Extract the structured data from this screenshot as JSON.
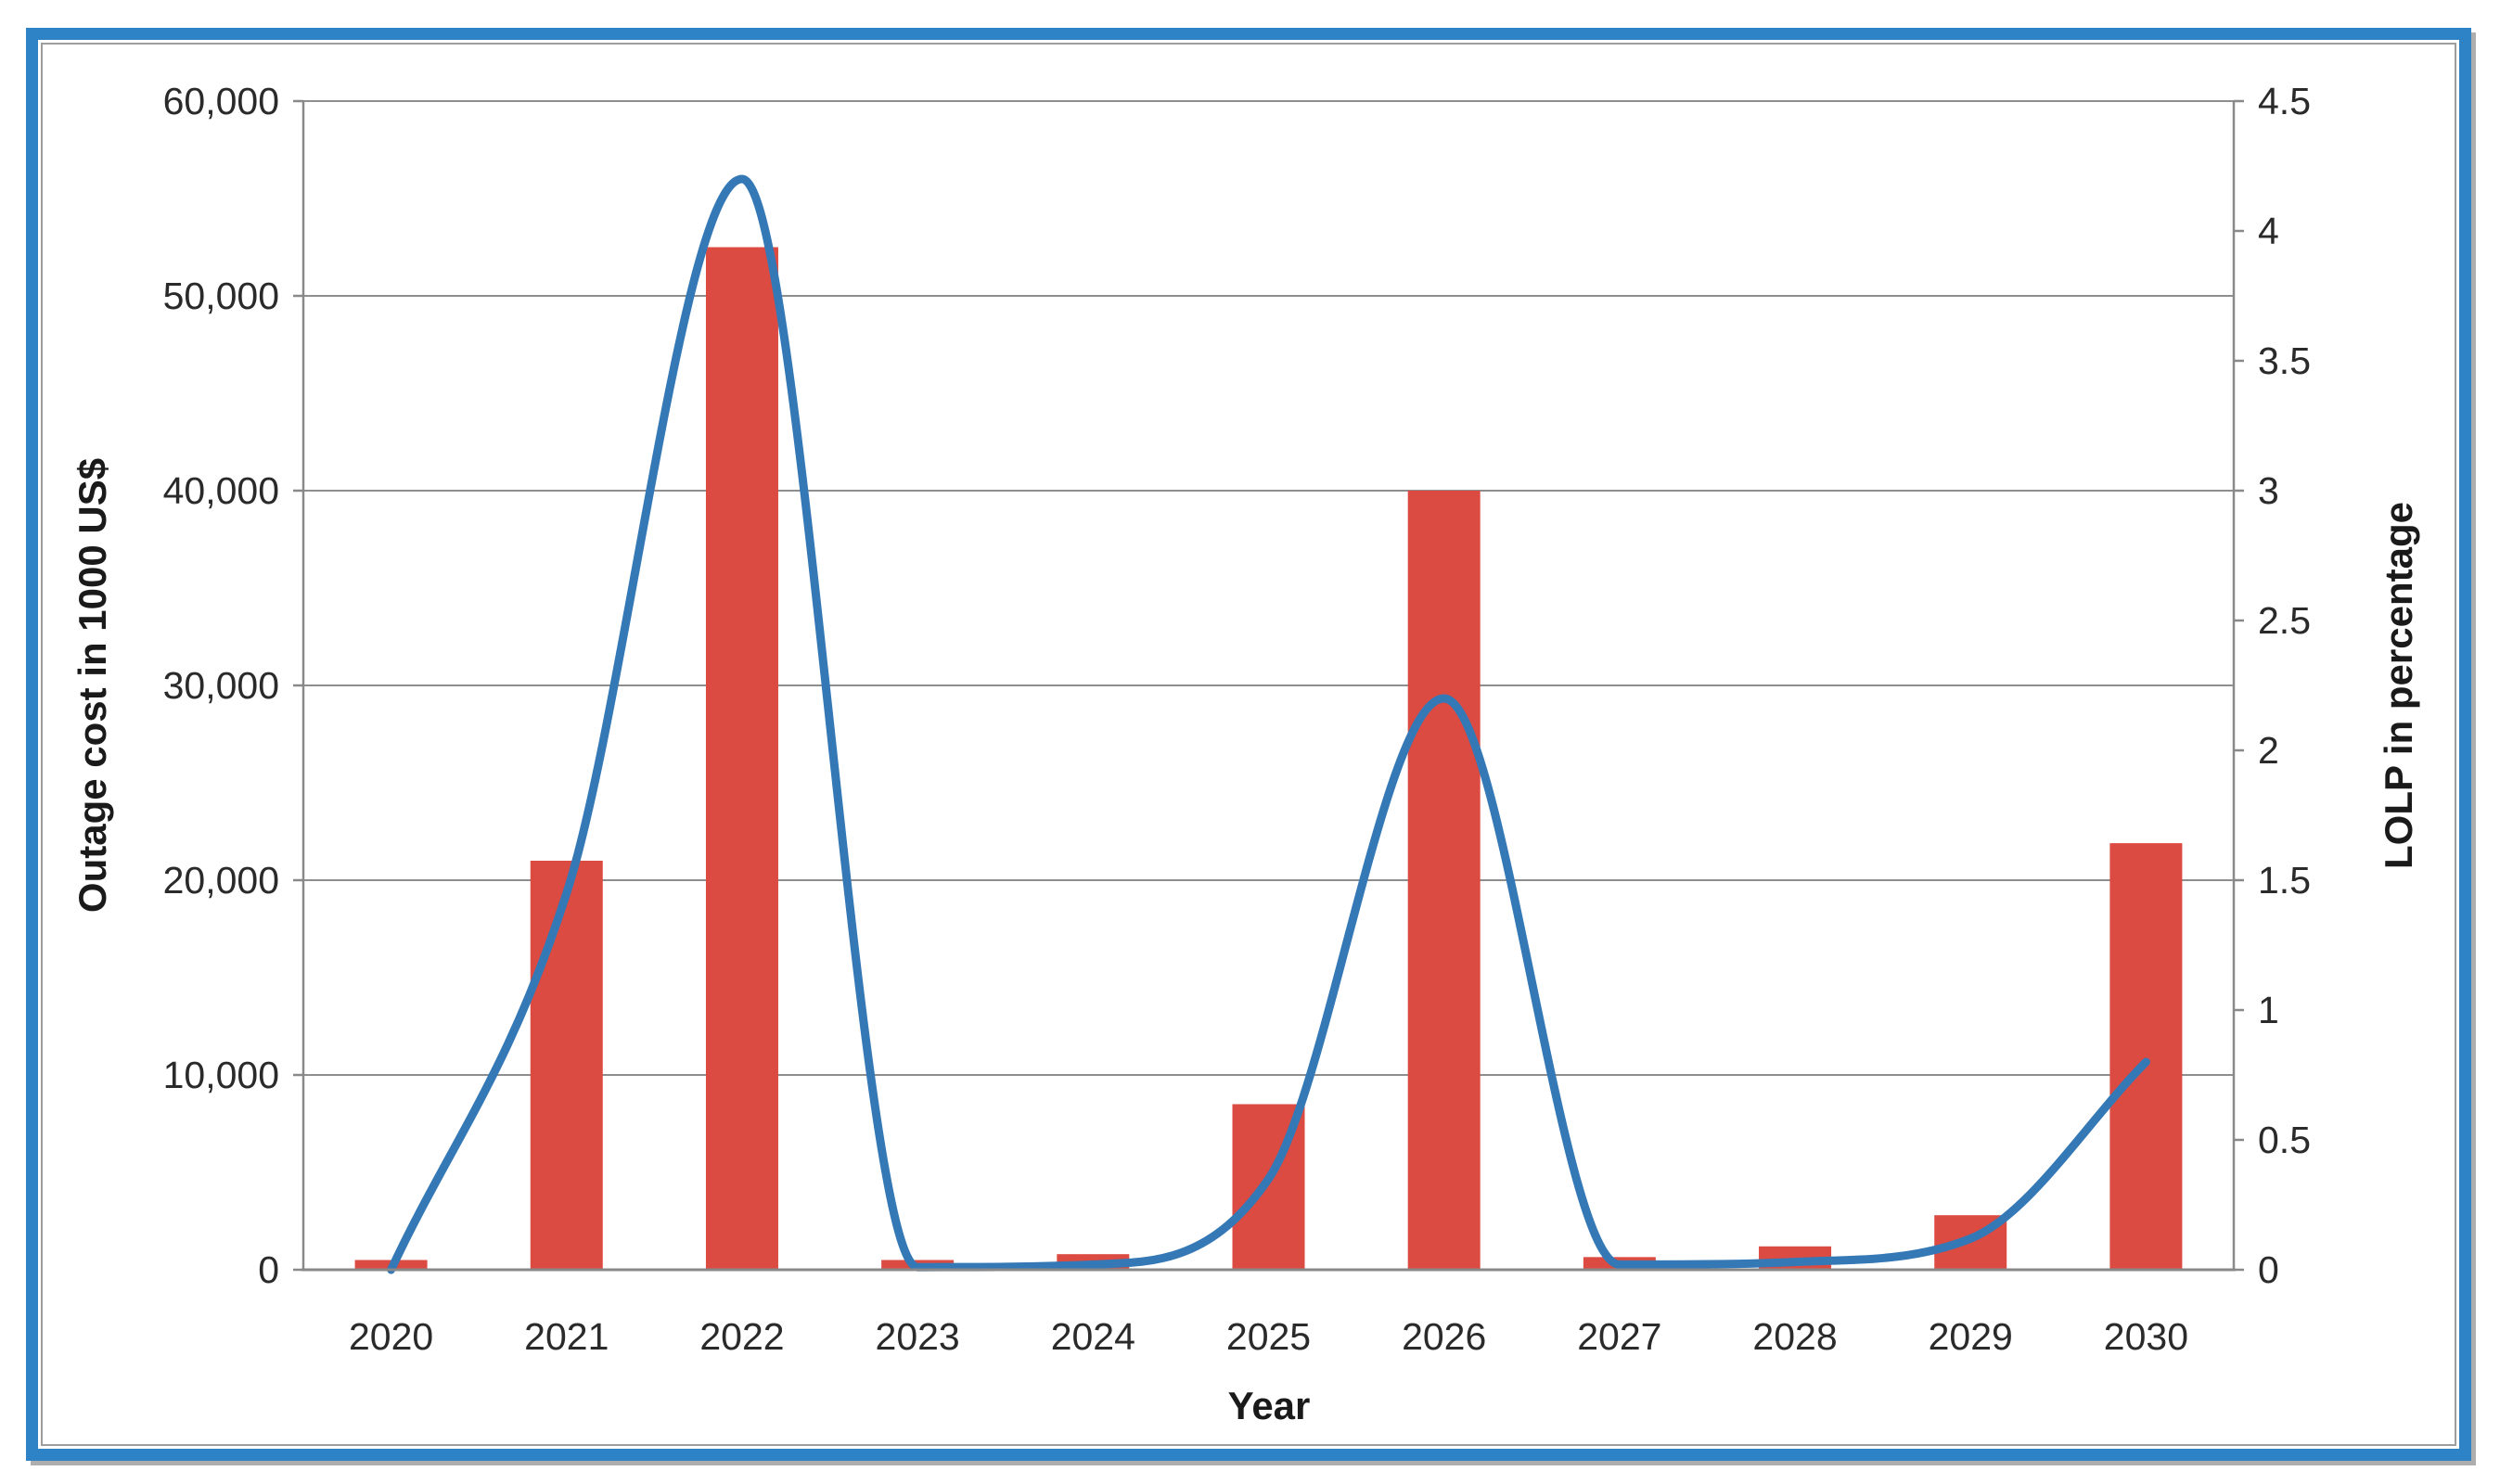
{
  "chart_data": {
    "type": "combo-bar-line",
    "categories": [
      "2020",
      "2021",
      "2022",
      "2023",
      "2024",
      "2025",
      "2026",
      "2027",
      "2028",
      "2029",
      "2030"
    ],
    "series": [
      {
        "name": "Outage cost",
        "type": "bar",
        "axis": "left",
        "color": "#dc4b42",
        "values": [
          500,
          21000,
          52500,
          500,
          800,
          8500,
          40000,
          650,
          1200,
          2800,
          21900
        ]
      },
      {
        "name": "LOLP",
        "type": "line",
        "axis": "right",
        "color": "#3478b6",
        "values": [
          0.0,
          1.45,
          4.2,
          0.01,
          0.02,
          0.35,
          2.2,
          0.02,
          0.03,
          0.12,
          0.8
        ]
      }
    ],
    "xlabel": "Year",
    "ylabel_left": "Outage cost in 1000 US$",
    "ylabel_right": "LOLP in percentage",
    "left_axis": {
      "min": 0,
      "max": 60000,
      "step": 10000,
      "tick_labels": [
        "0",
        "10,000",
        "20,000",
        "30,000",
        "40,000",
        "50,000",
        "60,000"
      ]
    },
    "right_axis": {
      "min": 0,
      "max": 4.5,
      "step": 0.5,
      "tick_labels": [
        "0",
        "0.5",
        "1",
        "1.5",
        "2",
        "2.5",
        "3",
        "3.5",
        "4",
        "4.5"
      ]
    },
    "grid": true,
    "legend": "none"
  },
  "style_colors": {
    "frame_border": "#2e83c6",
    "inner_border": "#9d9d9d",
    "gridline": "#8e8e8e",
    "axis_line": "#898989",
    "tick_text": "#2a2a2a"
  }
}
